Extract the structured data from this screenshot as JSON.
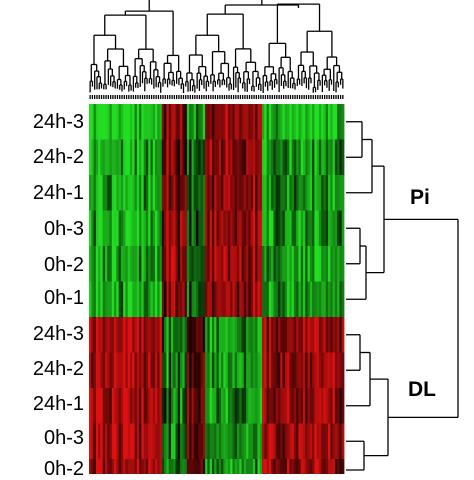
{
  "chart_data": {
    "type": "heatmap",
    "rows": [
      "24h-3",
      "24h-2",
      "24h-1",
      "0h-3",
      "0h-2",
      "0h-1",
      "24h-3",
      "24h-2",
      "24h-1",
      "0h-3",
      "0h-2"
    ],
    "row_groups": [
      {
        "label": "Pi",
        "rows": [
          0,
          1,
          2,
          3,
          4,
          5
        ]
      },
      {
        "label": "DL",
        "rows": [
          6,
          7,
          8,
          9,
          10
        ]
      }
    ],
    "color_scale": {
      "low": "#22dd22",
      "mid": "#000000",
      "high": "#dd1111"
    },
    "column_dendrogram": true,
    "row_dendrogram": true,
    "n_columns": 112
  }
}
